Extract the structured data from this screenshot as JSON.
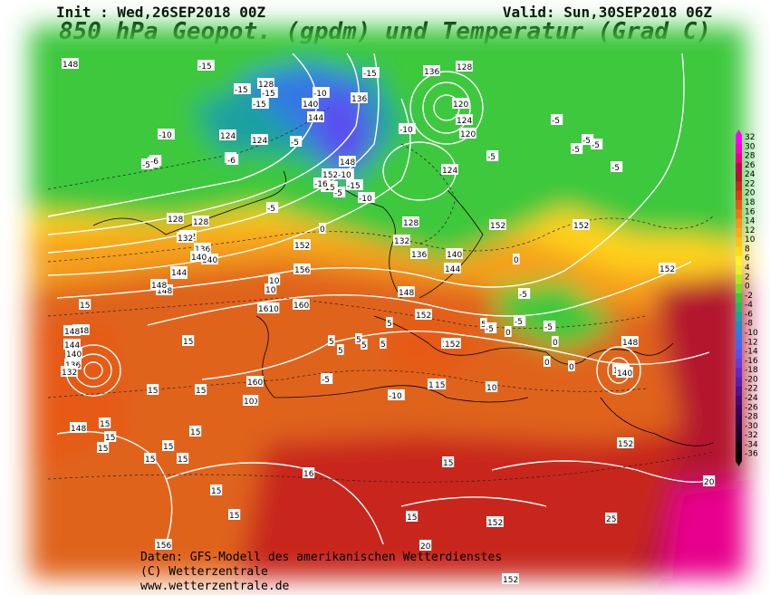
{
  "header": {
    "init": "Init : Wed,26SEP2018 00Z",
    "valid": "Valid: Sun,30SEP2018 06Z",
    "title": "850 hPa Geopot. (gpdm) und Temperatur (Grad C)"
  },
  "footer": {
    "line1": "Daten: GFS-Modell des amerikanischen Wetterdienstes",
    "line2": "(C) Wetterzentrale",
    "line3": "www.wetterzentrale.de"
  },
  "colorbar": {
    "levels": [
      "32",
      "30",
      "28",
      "26",
      "24",
      "22",
      "20",
      "18",
      "16",
      "14",
      "12",
      "10",
      "8",
      "6",
      "4",
      "2",
      "0",
      "-2",
      "-4",
      "-6",
      "-8",
      "-10",
      "-12",
      "-14",
      "-16",
      "-18",
      "-20",
      "-22",
      "-24",
      "-26",
      "-28",
      "-30",
      "-32",
      "-34",
      "-36"
    ],
    "colors": [
      "#ff00ff",
      "#ff00c8",
      "#e8008c",
      "#c80050",
      "#b4142d",
      "#c8281e",
      "#dc3c14",
      "#e65a14",
      "#f07814",
      "#f5961e",
      "#faaa1e",
      "#ffc31e",
      "#ffdc1e",
      "#fff032",
      "#e6f032",
      "#b4e628",
      "#78dc28",
      "#3cc83c",
      "#28b46e",
      "#1ea0a0",
      "#1e8cc8",
      "#3278e6",
      "#4664f0",
      "#5a50f0",
      "#643cdc",
      "#6428c8",
      "#5a1eb4",
      "#50148c",
      "#460a78",
      "#3c0064",
      "#320050",
      "#28003c",
      "#1e0028",
      "#140014",
      "#0a000a"
    ]
  },
  "map": {
    "geopotential_labels": [
      {
        "text": "148"
      },
      {
        "text": "128"
      },
      {
        "text": "140"
      },
      {
        "text": "136"
      },
      {
        "text": "144"
      },
      {
        "text": "148"
      },
      {
        "text": "152"
      },
      {
        "text": "124"
      },
      {
        "text": "124"
      },
      {
        "text": "128"
      },
      {
        "text": "132"
      },
      {
        "text": "136"
      },
      {
        "text": "140"
      },
      {
        "text": "144"
      },
      {
        "text": "148"
      },
      {
        "text": "152"
      },
      {
        "text": "156"
      },
      {
        "text": "160"
      },
      {
        "text": "1610"
      },
      {
        "text": "136"
      },
      {
        "text": "128"
      },
      {
        "text": "120"
      },
      {
        "text": "124"
      },
      {
        "text": "120"
      },
      {
        "text": "124"
      },
      {
        "text": "128"
      },
      {
        "text": "132"
      },
      {
        "text": "136"
      },
      {
        "text": "140"
      },
      {
        "text": "144"
      },
      {
        "text": "148"
      },
      {
        "text": "152"
      },
      {
        "text": "152"
      },
      {
        "text": "152"
      },
      {
        "text": "152"
      },
      {
        "text": "152"
      },
      {
        "text": "148"
      },
      {
        "text": "152"
      },
      {
        "text": "148"
      },
      {
        "text": "144"
      },
      {
        "text": "140"
      },
      {
        "text": "136"
      },
      {
        "text": "132"
      },
      {
        "text": "148"
      },
      {
        "text": "160"
      },
      {
        "text": "156"
      },
      {
        "text": "152"
      },
      {
        "text": "152"
      },
      {
        "text": "148"
      },
      {
        "text": "144"
      },
      {
        "text": "140"
      },
      {
        "text": "152"
      },
      {
        "text": "128"
      },
      {
        "text": "132"
      },
      {
        "text": "140"
      },
      {
        "text": "144"
      },
      {
        "text": "148"
      }
    ],
    "temperature_labels": [
      {
        "text": "-15"
      },
      {
        "text": "-15"
      },
      {
        "text": "-15"
      },
      {
        "text": "-15"
      },
      {
        "text": "-15"
      },
      {
        "text": "-10"
      },
      {
        "text": "-10"
      },
      {
        "text": "-10"
      },
      {
        "text": "-5"
      },
      {
        "text": "-5"
      },
      {
        "text": "-5"
      },
      {
        "text": "-5"
      },
      {
        "text": "-5"
      },
      {
        "text": "-5"
      },
      {
        "text": "-5"
      },
      {
        "text": "-5"
      },
      {
        "text": "-5"
      },
      {
        "text": "-5"
      },
      {
        "text": "-10"
      },
      {
        "text": "-5"
      },
      {
        "text": "-15"
      },
      {
        "text": "-10"
      },
      {
        "text": "-16"
      },
      {
        "text": "-15"
      },
      {
        "text": "0"
      },
      {
        "text": "0"
      },
      {
        "text": "0"
      },
      {
        "text": "5"
      },
      {
        "text": "10"
      },
      {
        "text": "15"
      },
      {
        "text": "15"
      },
      {
        "text": "15"
      },
      {
        "text": "15"
      },
      {
        "text": "15"
      },
      {
        "text": "15"
      },
      {
        "text": "15"
      },
      {
        "text": "15"
      },
      {
        "text": "15"
      },
      {
        "text": "15"
      },
      {
        "text": "15"
      },
      {
        "text": "10"
      },
      {
        "text": "10"
      },
      {
        "text": "5"
      },
      {
        "text": "5"
      },
      {
        "text": "5"
      },
      {
        "text": "5"
      },
      {
        "text": "5"
      },
      {
        "text": "-10"
      },
      {
        "text": "10"
      },
      {
        "text": "15"
      },
      {
        "text": "15"
      },
      {
        "text": "15"
      },
      {
        "text": "20"
      },
      {
        "text": "25"
      },
      {
        "text": "20"
      },
      {
        "text": "16"
      },
      {
        "text": "15"
      },
      {
        "text": "15"
      },
      {
        "text": "15"
      },
      {
        "text": "10"
      },
      {
        "text": "-5"
      },
      {
        "text": "5"
      },
      {
        "text": "0"
      },
      {
        "text": "0"
      },
      {
        "text": "0"
      },
      {
        "text": "-5"
      },
      {
        "text": "-5"
      },
      {
        "text": "-5"
      },
      {
        "text": "-5"
      },
      {
        "text": "-5"
      },
      {
        "text": "-6"
      },
      {
        "text": "-6"
      }
    ]
  }
}
